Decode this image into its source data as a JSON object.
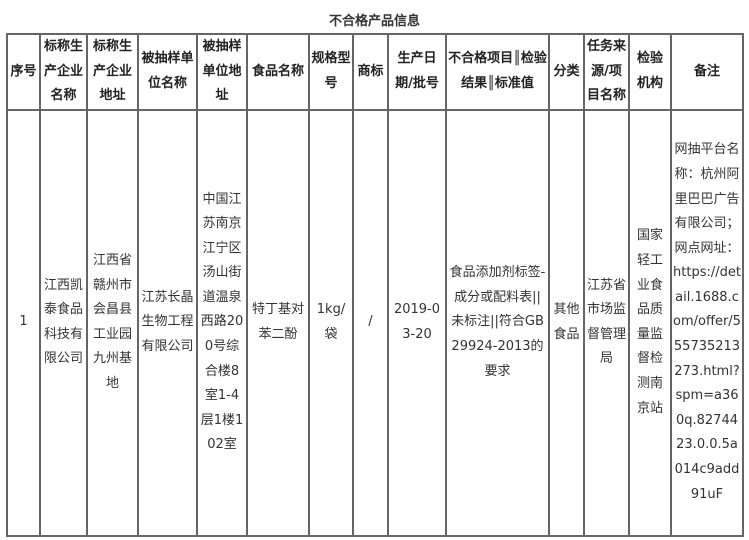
{
  "title": "不合格产品信息",
  "headers": [
    "序号",
    "标称生产企业名称",
    "标称生产企业地址",
    "被抽样单位名称",
    "被抽样单位地址",
    "食品名称",
    "规格型号",
    "商标",
    "生产日期/批号",
    "不合格项目║检验结果║标准值",
    "分类",
    "任务来源/项目名称",
    "检验机构",
    "备注"
  ],
  "rows": [
    [
      "1",
      "江西凯泰食品科技有限公司",
      "江西省赣州市会昌县工业园九州基地",
      "江苏长晶生物工程有限公司",
      "中国江苏南京江宁区汤山街道温泉西路200号综合楼8室1-4层1楼102室",
      "特丁基对苯二酚",
      "1kg/袋",
      "/",
      "2019-03-20",
      "食品添加剂标签-成分或配料表||未标注||符合GB29924-2013的要求",
      "其他食品",
      "江苏省市场监督管理局",
      "国家轻工业食品质量监督检测南京站",
      "网抽平台名称：杭州阿里巴巴广告有限公司；网点网址：https://detail.1688.com/offer/555735213273.html?spm=a360q.8274423.0.0.5a014c9add91uF"
    ]
  ]
}
